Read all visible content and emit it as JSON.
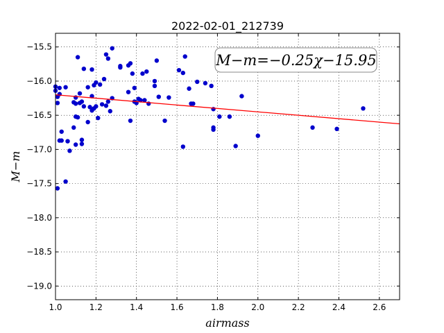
{
  "chart_data": {
    "type": "scatter",
    "title": "2022-02-01_212739",
    "xlabel": "airmass",
    "ylabel": "M−m",
    "xlim": [
      1.0,
      2.7
    ],
    "ylim": [
      -19.2,
      -15.3
    ],
    "y_inverted": true,
    "grid": true,
    "x_ticks": [
      1.0,
      1.2,
      1.4,
      1.6,
      1.8,
      2.0,
      2.2,
      2.4,
      2.6
    ],
    "x_tick_labels": [
      "1.0",
      "1.2",
      "1.4",
      "1.6",
      "1.8",
      "2.0",
      "2.2",
      "2.4",
      "2.6"
    ],
    "y_ticks": [
      -15.5,
      -16.0,
      -16.5,
      -17.0,
      -17.5,
      -18.0,
      -18.5,
      -19.0
    ],
    "y_tick_labels": [
      "−15.5",
      "−16.0",
      "−16.5",
      "−17.0",
      "−17.5",
      "−18.0",
      "−18.5",
      "−19.0"
    ],
    "annotation": "M−m=−0.25χ−15.95",
    "colors": {
      "points": "#0000cc",
      "fit_line": "#ff0000"
    },
    "fit": {
      "slope": -0.25,
      "intercept": -15.95
    },
    "series": [
      {
        "x": [
          1.0,
          1.0,
          1.01,
          1.01,
          1.02,
          1.02,
          1.03,
          1.03,
          1.02,
          1.05,
          1.01,
          1.05,
          1.06,
          1.07,
          1.09,
          1.09,
          1.1,
          1.1,
          1.1,
          1.1,
          1.11,
          1.11,
          1.12,
          1.12,
          1.13,
          1.13,
          1.13,
          1.14,
          1.14,
          1.16,
          1.16,
          1.17,
          1.18,
          1.18,
          1.18,
          1.19,
          1.19,
          1.2,
          1.2,
          1.21,
          1.22,
          1.23,
          1.24,
          1.25,
          1.25,
          1.26,
          1.26,
          1.27,
          1.28,
          1.28,
          1.32,
          1.32,
          1.36,
          1.36,
          1.37,
          1.37,
          1.38,
          1.39,
          1.39,
          1.4,
          1.41,
          1.42,
          1.43,
          1.44,
          1.45,
          1.46,
          1.49,
          1.49,
          1.5,
          1.51,
          1.54,
          1.56,
          1.61,
          1.63,
          1.63,
          1.64,
          1.66,
          1.67,
          1.68,
          1.7,
          1.74,
          1.77,
          1.78,
          1.78,
          1.78,
          1.81,
          1.86,
          1.89,
          1.92,
          2.0,
          2.27,
          2.39,
          2.52
        ],
        "y": [
          -16.08,
          -16.14,
          -16.23,
          -16.32,
          -16.19,
          -16.1,
          -16.74,
          -16.87,
          -16.87,
          -16.09,
          -17.57,
          -17.47,
          -16.88,
          -17.02,
          -16.31,
          -16.68,
          -16.52,
          -16.24,
          -16.33,
          -16.93,
          -15.65,
          -16.53,
          -16.32,
          -16.18,
          -16.3,
          -16.86,
          -16.92,
          -15.82,
          -16.37,
          -16.09,
          -16.6,
          -16.38,
          -16.22,
          -16.43,
          -15.83,
          -16.06,
          -16.4,
          -16.37,
          -16.02,
          -16.54,
          -16.05,
          -16.34,
          -15.97,
          -16.36,
          -15.61,
          -15.67,
          -16.3,
          -16.44,
          -15.52,
          -16.25,
          -15.78,
          -15.8,
          -15.77,
          -16.16,
          -15.74,
          -16.58,
          -15.89,
          -16.1,
          -16.3,
          -16.32,
          -16.26,
          -16.28,
          -15.89,
          -16.28,
          -15.86,
          -16.33,
          -16.0,
          -16.07,
          -15.7,
          -16.23,
          -16.58,
          -16.24,
          -15.84,
          -15.88,
          -16.96,
          -15.64,
          -16.11,
          -16.33,
          -16.33,
          -16.01,
          -16.03,
          -16.07,
          -16.68,
          -16.71,
          -16.41,
          -16.52,
          -16.52,
          -16.95,
          -16.22,
          -16.8,
          -16.68,
          -16.7,
          -16.4
        ]
      }
    ]
  }
}
